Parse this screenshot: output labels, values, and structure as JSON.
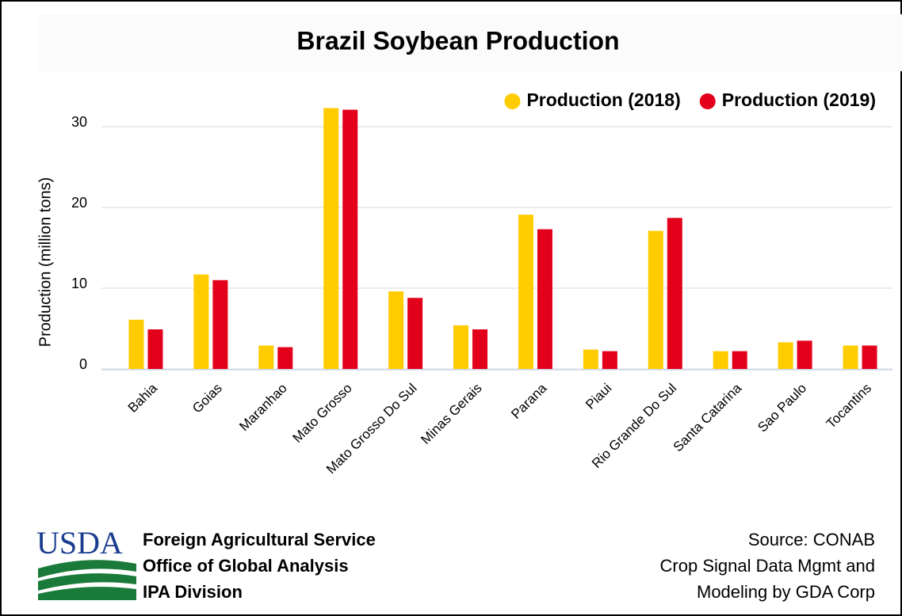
{
  "chart_data": {
    "type": "bar",
    "title": "Brazil Soybean Production",
    "y_label": "Production (million tons)",
    "categories": [
      "Bahia",
      "Goias",
      "Maranhao",
      "Mato Grosso",
      "Mato Grosso Do Sul",
      "Minas Gerais",
      "Parana",
      "Piaui",
      "Rio Grande Do Sul",
      "Santa Catarina",
      "Sao Paulo",
      "Tocantins"
    ],
    "series": [
      {
        "name": "Production (2018)",
        "color": "#ffcc00",
        "values": [
          6.1,
          11.7,
          2.9,
          32.3,
          9.6,
          5.4,
          19.1,
          2.4,
          17.1,
          2.2,
          3.3,
          2.9
        ]
      },
      {
        "name": "Production (2019)",
        "color": "#e3001b",
        "values": [
          4.9,
          11.0,
          2.7,
          32.1,
          8.8,
          4.9,
          17.3,
          2.2,
          18.7,
          2.2,
          3.5,
          2.9
        ]
      }
    ],
    "ylim": [
      0,
      35
    ],
    "yticks": [
      0,
      10,
      20,
      30
    ],
    "grid": true,
    "legend": "top-right"
  },
  "footer": {
    "logo": "USDA",
    "agency": [
      "Foreign Agricultural Service",
      "Office of Global Analysis",
      "IPA Division"
    ],
    "source": [
      "Source: CONAB",
      "Crop Signal Data Mgmt and",
      "Modeling by GDA Corp"
    ]
  }
}
